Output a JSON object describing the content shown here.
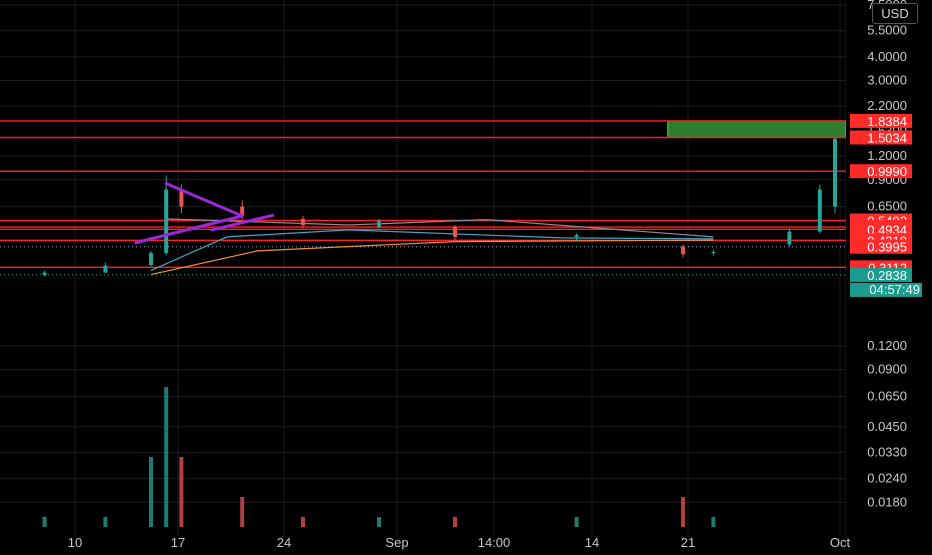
{
  "currency": "USD",
  "colors": {
    "background": "#000000",
    "grid": "#1c1c22",
    "axis_text": "#c8c8c8",
    "level_line": "#ff1f1f",
    "level_badge": "#ff2a2a",
    "current_badge": "#1a9c8f",
    "up": "#26a69a",
    "down": "#ef5350",
    "pattern": "#9b27d6",
    "target_zone_fill": "#2f7d2f",
    "target_zone_border": "#5ad65a",
    "ma_fast": "#8c8c9a",
    "ma_mid": "#3fa7c4",
    "ma_slow": "#f58f3b"
  },
  "chart_data": {
    "type": "candlestick",
    "price_scale": "log",
    "ylim": [
      0.016,
      7.5
    ],
    "y_ticks": [
      "7.5000",
      "5.5000",
      "4.0000",
      "3.0000",
      "2.2000",
      "1.2000",
      "0.9000",
      "0.6500",
      "0.1200",
      "0.0900",
      "0.0650",
      "0.0450",
      "0.0330",
      "0.0240",
      "0.0180"
    ],
    "x_ticks": [
      "10",
      "17",
      "24",
      "Sep",
      "14:00",
      "14",
      "21",
      "Oct"
    ],
    "horizontal_levels": [
      "1.8384",
      "1.5034",
      "0.9990",
      "0.5492",
      "0.5074",
      "0.4934",
      "0.4319",
      "0.3112"
    ],
    "hidden_level": "1.6300",
    "dotted_level": "0.3995",
    "current_price": "0.2838",
    "countdown": "04:57:49",
    "target_zone": {
      "from_date": "Sep 18",
      "low": 1.5034,
      "high": 1.8384
    },
    "annotations": [
      "symmetrical triangle pattern drawn with purple trend lines"
    ],
    "ohlc": [
      {
        "date": "Aug 04",
        "open": 0.28,
        "high": 0.29,
        "low": 0.27,
        "close": 0.283,
        "volume": "low"
      },
      {
        "date": "Aug 08",
        "open": 0.283,
        "high": 0.3,
        "low": 0.278,
        "close": 0.292,
        "volume": "low"
      },
      {
        "date": "Aug 12",
        "open": 0.292,
        "high": 0.33,
        "low": 0.29,
        "close": 0.318,
        "volume": "low"
      },
      {
        "date": "Aug 15",
        "open": 0.32,
        "high": 0.38,
        "low": 0.315,
        "close": 0.37,
        "volume": "high"
      },
      {
        "date": "Aug 16",
        "open": 0.37,
        "high": 0.95,
        "low": 0.36,
        "close": 0.8,
        "volume": "very high"
      },
      {
        "date": "Aug 17",
        "open": 0.8,
        "high": 0.85,
        "low": 0.6,
        "close": 0.65,
        "volume": "high"
      },
      {
        "date": "Aug 21",
        "open": 0.65,
        "high": 0.7,
        "low": 0.56,
        "close": 0.58,
        "volume": "medium"
      },
      {
        "date": "Aug 25",
        "open": 0.56,
        "high": 0.58,
        "low": 0.5,
        "close": 0.52,
        "volume": "low"
      },
      {
        "date": "Aug 30",
        "open": 0.51,
        "high": 0.56,
        "low": 0.5,
        "close": 0.545,
        "volume": "low"
      },
      {
        "date": "Sep 04",
        "open": 0.51,
        "high": 0.52,
        "low": 0.43,
        "close": 0.45,
        "volume": "low"
      },
      {
        "date": "Sep 12",
        "open": 0.45,
        "high": 0.47,
        "low": 0.43,
        "close": 0.46,
        "volume": "low"
      },
      {
        "date": "Sep 19",
        "open": 0.4,
        "high": 0.41,
        "low": 0.35,
        "close": 0.365,
        "volume": "medium"
      },
      {
        "date": "Sep 21",
        "open": 0.37,
        "high": 0.385,
        "low": 0.36,
        "close": 0.375,
        "volume": "low"
      },
      {
        "date": "Sep 26",
        "open": 0.41,
        "high": 0.5,
        "low": 0.4,
        "close": 0.48,
        "volume": "none"
      },
      {
        "date": "Sep 28",
        "open": 0.48,
        "high": 0.85,
        "low": 0.47,
        "close": 0.8,
        "volume": "none"
      },
      {
        "date": "Sep 29",
        "open": 0.65,
        "high": 1.5,
        "low": 0.6,
        "close": 1.48,
        "volume": "none"
      }
    ],
    "moving_averages": [
      {
        "color": "ma_fast",
        "points": [
          [
            "Aug 16",
            0.56
          ],
          [
            "Aug 28",
            0.52
          ],
          [
            "Sep 06",
            0.555
          ],
          [
            "Sep 21",
            0.45
          ]
        ]
      },
      {
        "color": "ma_mid",
        "points": [
          [
            "Aug 15",
            0.3
          ],
          [
            "Aug 20",
            0.45
          ],
          [
            "Aug 28",
            0.49
          ],
          [
            "Sep 11",
            0.445
          ],
          [
            "Sep 21",
            0.44
          ]
        ]
      },
      {
        "color": "ma_slow",
        "points": [
          [
            "Aug 15",
            0.285
          ],
          [
            "Aug 22",
            0.38
          ],
          [
            "Sep 04",
            0.425
          ],
          [
            "Sep 21",
            0.433
          ]
        ]
      }
    ]
  }
}
